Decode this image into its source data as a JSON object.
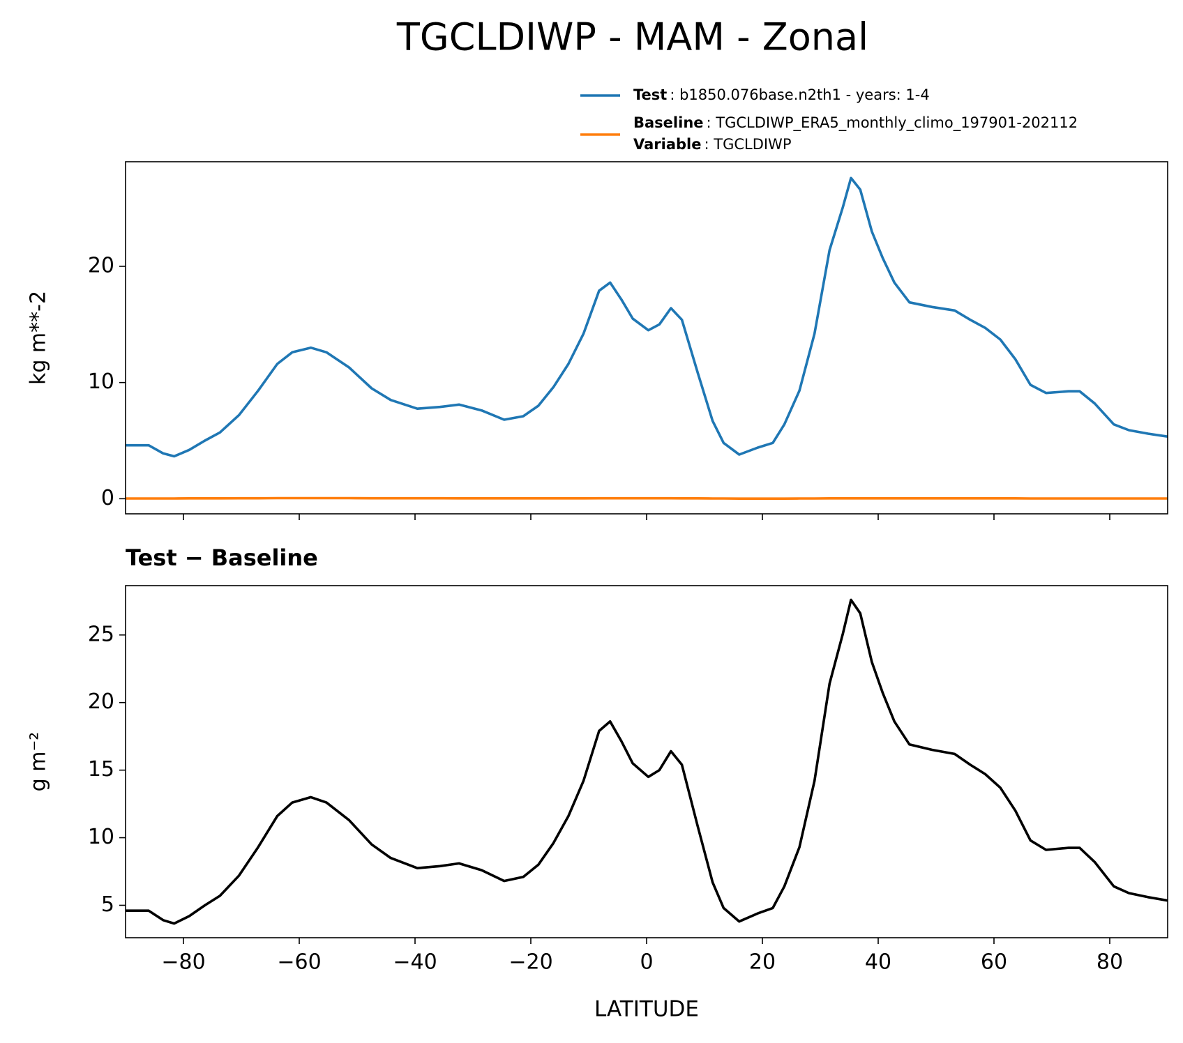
{
  "title": "TGCLDIWP - MAM - Zonal",
  "chart_data": [
    {
      "type": "line",
      "ylabel": "kg m**-2",
      "x": [
        -90,
        -86,
        -83.5,
        -81.6,
        -79,
        -76.3,
        -73.7,
        -70.4,
        -67.1,
        -63.8,
        -61.2,
        -58,
        -55.3,
        -51.4,
        -47.5,
        -44.2,
        -39.6,
        -35.7,
        -32.4,
        -28.5,
        -24.6,
        -21.3,
        -18.7,
        -16.1,
        -13.5,
        -10.9,
        -8.2,
        -6.3,
        -4.3,
        -2.4,
        0.3,
        2.2,
        4.2,
        6.1,
        8.8,
        11.4,
        13.3,
        16,
        19.2,
        21.8,
        23.8,
        26.4,
        29,
        31.6,
        33.9,
        35.3,
        36.9,
        38.9,
        40.8,
        42.8,
        45.4,
        49.3,
        53.2,
        55.9,
        58.5,
        61.1,
        63.7,
        66.3,
        69,
        72.9,
        74.8,
        77.4,
        80.7,
        83.3,
        86.6,
        90
      ],
      "series": [
        {
          "name": "Test",
          "detail": ": b1850.076base.n2th1 - years: 1-4",
          "color": "#1f77b4",
          "values": [
            4.6,
            4.6,
            3.9,
            3.65,
            4.2,
            5.0,
            5.7,
            7.2,
            9.3,
            11.6,
            12.6,
            13.0,
            12.6,
            11.3,
            9.5,
            8.5,
            7.75,
            7.9,
            8.1,
            7.6,
            6.8,
            7.1,
            8.0,
            9.6,
            11.6,
            14.2,
            17.9,
            18.6,
            17.1,
            15.5,
            14.5,
            15.0,
            16.4,
            15.4,
            10.9,
            6.7,
            4.8,
            3.8,
            4.4,
            4.8,
            6.4,
            9.3,
            14.2,
            21.4,
            25.1,
            27.6,
            26.6,
            23.0,
            20.7,
            18.6,
            16.9,
            16.5,
            16.2,
            15.4,
            14.7,
            13.7,
            12.0,
            9.8,
            9.1,
            9.25,
            9.25,
            8.2,
            6.4,
            5.9,
            5.6,
            5.35
          ]
        },
        {
          "name": "Baseline",
          "detail": ": TGCLDIWP_ERA5_monthly_climo_197901-202112",
          "variable_name": "Variable",
          "variable_detail": ": TGCLDIWP",
          "color": "#ff7f0e",
          "values": [
            0.02,
            0.02,
            0.02,
            0.02,
            0.03,
            0.03,
            0.03,
            0.04,
            0.04,
            0.05,
            0.05,
            0.05,
            0.05,
            0.05,
            0.04,
            0.04,
            0.04,
            0.04,
            0.03,
            0.03,
            0.03,
            0.03,
            0.03,
            0.03,
            0.03,
            0.03,
            0.04,
            0.04,
            0.04,
            0.04,
            0.04,
            0.04,
            0.04,
            0.03,
            0.03,
            0.02,
            0.02,
            0.01,
            0.01,
            0.01,
            0.01,
            0.02,
            0.02,
            0.03,
            0.03,
            0.03,
            0.03,
            0.03,
            0.03,
            0.03,
            0.03,
            0.03,
            0.03,
            0.03,
            0.03,
            0.03,
            0.03,
            0.02,
            0.02,
            0.02,
            0.02,
            0.02,
            0.02,
            0.02,
            0.02,
            0.02
          ]
        }
      ],
      "xlim": [
        -90,
        90
      ],
      "xticks": [
        -80,
        -60,
        -40,
        -20,
        0,
        20,
        40,
        60,
        80
      ],
      "ylim": [
        -1.3,
        29
      ],
      "yticks": [
        0,
        10,
        20
      ]
    },
    {
      "type": "line",
      "subtitle": "Test − Baseline",
      "ylabel": "g m⁻²",
      "xlabel": "LATITUDE",
      "x": [
        -90,
        -86,
        -83.5,
        -81.6,
        -79,
        -76.3,
        -73.7,
        -70.4,
        -67.1,
        -63.8,
        -61.2,
        -58,
        -55.3,
        -51.4,
        -47.5,
        -44.2,
        -39.6,
        -35.7,
        -32.4,
        -28.5,
        -24.6,
        -21.3,
        -18.7,
        -16.1,
        -13.5,
        -10.9,
        -8.2,
        -6.3,
        -4.3,
        -2.4,
        0.3,
        2.2,
        4.2,
        6.1,
        8.8,
        11.4,
        13.3,
        16,
        19.2,
        21.8,
        23.8,
        26.4,
        29,
        31.6,
        33.9,
        35.3,
        36.9,
        38.9,
        40.8,
        42.8,
        45.4,
        49.3,
        53.2,
        55.9,
        58.5,
        61.1,
        63.7,
        66.3,
        69,
        72.9,
        74.8,
        77.4,
        80.7,
        83.3,
        86.6,
        90
      ],
      "series": [
        {
          "color": "#000000",
          "values": [
            4.6,
            4.6,
            3.9,
            3.65,
            4.2,
            5.0,
            5.7,
            7.2,
            9.3,
            11.6,
            12.6,
            13.0,
            12.6,
            11.3,
            9.5,
            8.5,
            7.75,
            7.9,
            8.1,
            7.6,
            6.8,
            7.1,
            8.0,
            9.6,
            11.6,
            14.2,
            17.9,
            18.6,
            17.1,
            15.5,
            14.5,
            15.0,
            16.4,
            15.4,
            10.9,
            6.7,
            4.8,
            3.8,
            4.4,
            4.8,
            6.4,
            9.3,
            14.2,
            21.4,
            25.1,
            27.6,
            26.6,
            23.0,
            20.7,
            18.6,
            16.9,
            16.5,
            16.2,
            15.4,
            14.7,
            13.7,
            12.0,
            9.8,
            9.1,
            9.25,
            9.25,
            8.2,
            6.4,
            5.9,
            5.6,
            5.35
          ]
        }
      ],
      "xlim": [
        -90,
        90
      ],
      "xticks": [
        {
          "value": -80,
          "label": "−80"
        },
        {
          "value": -60,
          "label": "−60"
        },
        {
          "value": -40,
          "label": "−40"
        },
        {
          "value": -20,
          "label": "−20"
        },
        0,
        20,
        40,
        60,
        80
      ],
      "ylim": [
        2.6,
        28.65
      ],
      "yticks": [
        5,
        10,
        15,
        20,
        25
      ]
    }
  ]
}
